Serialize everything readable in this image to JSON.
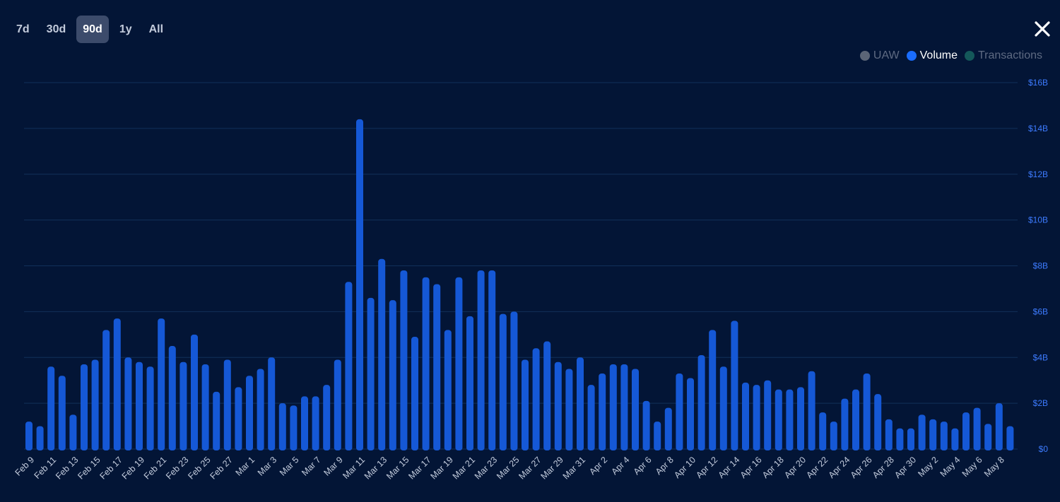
{
  "range_tabs": [
    {
      "label": "7d",
      "active": false
    },
    {
      "label": "30d",
      "active": false
    },
    {
      "label": "90d",
      "active": true
    },
    {
      "label": "1y",
      "active": false
    },
    {
      "label": "All",
      "active": false
    }
  ],
  "close_icon": "close-icon",
  "legend": [
    {
      "label": "UAW",
      "color": "#5b6577",
      "active": false
    },
    {
      "label": "Volume",
      "color": "#1a6dff",
      "active": true
    },
    {
      "label": "Transactions",
      "color": "#14585a",
      "active": false
    }
  ],
  "colors": {
    "background": "#031536",
    "bar": "#1558d6",
    "grid": "#12305a",
    "y_tick": "#3d7bff"
  },
  "chart_data": {
    "type": "bar",
    "series": [
      {
        "name": "Volume",
        "values": [
          1.2,
          1.0,
          3.6,
          3.2,
          1.5,
          3.7,
          3.9,
          5.2,
          5.7,
          4.0,
          3.8,
          3.6,
          5.7,
          4.5,
          3.8,
          5.0,
          3.7,
          2.5,
          3.9,
          2.7,
          3.2,
          3.5,
          4.0,
          2.0,
          1.9,
          2.3,
          2.3,
          2.8,
          3.9,
          7.3,
          14.4,
          6.6,
          8.3,
          6.5,
          7.8,
          4.9,
          7.5,
          7.2,
          5.2,
          7.5,
          5.8,
          7.8,
          7.8,
          5.9,
          6.0,
          3.9,
          4.4,
          4.7,
          3.8,
          3.5,
          4.0,
          2.8,
          3.3,
          3.7,
          3.7,
          3.5,
          2.1,
          1.2,
          1.8,
          3.3,
          3.1,
          4.1,
          5.2,
          3.6,
          5.6,
          2.9,
          2.8,
          3.0,
          2.6,
          2.6,
          2.7,
          3.4,
          1.6,
          1.2,
          2.2,
          2.6,
          3.3,
          2.4,
          1.3,
          0.9,
          0.9,
          1.5,
          1.3,
          1.2,
          0.9,
          1.6,
          1.8,
          1.1,
          2.0,
          1.0
        ]
      }
    ],
    "x_ticks": [
      "Feb 9",
      "Feb 11",
      "Feb 13",
      "Feb 15",
      "Feb 17",
      "Feb 19",
      "Feb 21",
      "Feb 23",
      "Feb 25",
      "Feb 27",
      "Mar 1",
      "Mar 3",
      "Mar 5",
      "Mar 7",
      "Mar 9",
      "Mar 11",
      "Mar 13",
      "Mar 15",
      "Mar 17",
      "Mar 19",
      "Mar 21",
      "Mar 23",
      "Mar 25",
      "Mar 27",
      "Mar 29",
      "Mar 31",
      "Apr 2",
      "Apr 4",
      "Apr 6",
      "Apr 8",
      "Apr 10",
      "Apr 12",
      "Apr 14",
      "Apr 16",
      "Apr 18",
      "Apr 20",
      "Apr 22",
      "Apr 24",
      "Apr 26",
      "Apr 28",
      "Apr 30",
      "May 2",
      "May 4",
      "May 6",
      "May 8"
    ],
    "y_ticks": [
      "$0",
      "$2B",
      "$4B",
      "$6B",
      "$8B",
      "$10B",
      "$12B",
      "$14B",
      "$16B"
    ],
    "ylim": [
      0,
      16
    ],
    "y_axis_side": "right",
    "grid": true,
    "legend_position": "top-right"
  }
}
